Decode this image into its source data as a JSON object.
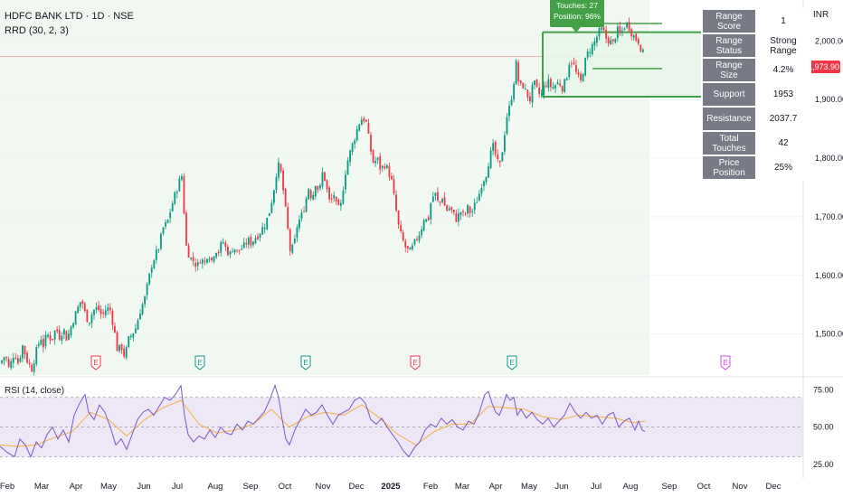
{
  "header": {
    "symbol_line": "HDFC BANK LTD · 1D · NSE",
    "indicator_line": "RRD (30, 2, 3)"
  },
  "currency": "INR",
  "last_price": "1,973.90",
  "callout": {
    "touches": "Touches: 27",
    "position": "Position: 96%"
  },
  "stats": [
    {
      "label": "Range Score",
      "value": "1"
    },
    {
      "label": "Range Status",
      "value": "Strong Range"
    },
    {
      "label": "Range Size",
      "value": "4.2%"
    },
    {
      "label": "Support",
      "value": "1953"
    },
    {
      "label": "Resistance",
      "value": "2037.7"
    },
    {
      "label": "Total Touches",
      "value": "42"
    },
    {
      "label": "Price Position",
      "value": "25%"
    }
  ],
  "rsi_title": "RSI (14, close)",
  "colors": {
    "up": "#089981",
    "down": "#f23645",
    "range": "#43a047",
    "rsi_line": "#7e57c2",
    "rsi_ma": "#f5b040",
    "rsi_band": "#ede7f6",
    "range_fill": "#e8f5e9",
    "price_line": "#f23645"
  },
  "chart_data": {
    "type": "candlestick",
    "price_axis": {
      "ticks": [
        1500,
        1600,
        1700,
        1800,
        1900,
        2000
      ],
      "tick_labels": [
        "1,500.00",
        "1,600.00",
        "1,700.00",
        "1,800.00",
        "1,900.00",
        "2,000.00"
      ],
      "ylim": [
        1430,
        2070
      ]
    },
    "rsi_axis": {
      "ticks": [
        25,
        50,
        75
      ],
      "tick_labels": [
        "25.00",
        "50.00",
        "75.00"
      ],
      "bands": [
        30,
        70
      ],
      "ylim": [
        20,
        82
      ]
    },
    "x_labels": [
      "Feb",
      "Mar",
      "Apr",
      "May",
      "Jun",
      "Jul",
      "Aug",
      "Sep",
      "Oct",
      "Nov",
      "Dec",
      "2025",
      "Feb",
      "Mar",
      "Apr",
      "May",
      "Jun",
      "Jul",
      "Aug",
      "Sep",
      "Oct",
      "Nov",
      "Dec"
    ],
    "price_path": [
      [
        0,
        1450
      ],
      [
        6,
        1465
      ],
      [
        10,
        1440
      ],
      [
        16,
        1470
      ],
      [
        20,
        1450
      ],
      [
        25,
        1480
      ],
      [
        30,
        1455
      ],
      [
        35,
        1440
      ],
      [
        40,
        1470
      ],
      [
        45,
        1495
      ],
      [
        48,
        1480
      ],
      [
        52,
        1500
      ],
      [
        57,
        1490
      ],
      [
        62,
        1510
      ],
      [
        66,
        1495
      ],
      [
        70,
        1510
      ],
      [
        74,
        1490
      ],
      [
        80,
        1520
      ],
      [
        85,
        1540
      ],
      [
        90,
        1560
      ],
      [
        94,
        1535
      ],
      [
        98,
        1520
      ],
      [
        103,
        1540
      ],
      [
        108,
        1545
      ],
      [
        113,
        1530
      ],
      [
        118,
        1545
      ],
      [
        122,
        1540
      ],
      [
        126,
        1510
      ],
      [
        130,
        1470
      ],
      [
        134,
        1480
      ],
      [
        138,
        1460
      ],
      [
        142,
        1490
      ],
      [
        146,
        1500
      ],
      [
        150,
        1510
      ],
      [
        155,
        1540
      ],
      [
        160,
        1560
      ],
      [
        164,
        1590
      ],
      [
        168,
        1620
      ],
      [
        172,
        1635
      ],
      [
        176,
        1650
      ],
      [
        180,
        1680
      ],
      [
        185,
        1690
      ],
      [
        190,
        1720
      ],
      [
        194,
        1740
      ],
      [
        198,
        1760
      ],
      [
        201,
        1770
      ],
      [
        203,
        1720
      ],
      [
        206,
        1650
      ],
      [
        210,
        1630
      ],
      [
        214,
        1625
      ],
      [
        218,
        1615
      ],
      [
        222,
        1630
      ],
      [
        226,
        1620
      ],
      [
        230,
        1640
      ],
      [
        234,
        1625
      ],
      [
        238,
        1645
      ],
      [
        242,
        1640
      ],
      [
        246,
        1660
      ],
      [
        250,
        1645
      ],
      [
        254,
        1635
      ],
      [
        258,
        1650
      ],
      [
        262,
        1640
      ],
      [
        266,
        1645
      ],
      [
        270,
        1650
      ],
      [
        274,
        1660
      ],
      [
        278,
        1655
      ],
      [
        282,
        1665
      ],
      [
        286,
        1670
      ],
      [
        290,
        1680
      ],
      [
        294,
        1690
      ],
      [
        298,
        1710
      ],
      [
        302,
        1740
      ],
      [
        306,
        1780
      ],
      [
        309,
        1790
      ],
      [
        312,
        1760
      ],
      [
        315,
        1720
      ],
      [
        318,
        1680
      ],
      [
        321,
        1640
      ],
      [
        325,
        1650
      ],
      [
        329,
        1690
      ],
      [
        333,
        1700
      ],
      [
        337,
        1720
      ],
      [
        341,
        1750
      ],
      [
        345,
        1730
      ],
      [
        349,
        1760
      ],
      [
        353,
        1740
      ],
      [
        357,
        1780
      ],
      [
        361,
        1750
      ],
      [
        365,
        1720
      ],
      [
        369,
        1740
      ],
      [
        373,
        1710
      ],
      [
        377,
        1720
      ],
      [
        381,
        1770
      ],
      [
        385,
        1800
      ],
      [
        389,
        1820
      ],
      [
        393,
        1840
      ],
      [
        397,
        1860
      ],
      [
        401,
        1870
      ],
      [
        405,
        1860
      ],
      [
        409,
        1820
      ],
      [
        413,
        1790
      ],
      [
        417,
        1800
      ],
      [
        421,
        1780
      ],
      [
        425,
        1790
      ],
      [
        429,
        1780
      ],
      [
        433,
        1760
      ],
      [
        437,
        1720
      ],
      [
        441,
        1680
      ],
      [
        445,
        1660
      ],
      [
        449,
        1645
      ],
      [
        453,
        1640
      ],
      [
        457,
        1650
      ],
      [
        461,
        1665
      ],
      [
        465,
        1675
      ],
      [
        469,
        1700
      ],
      [
        473,
        1690
      ],
      [
        477,
        1730
      ],
      [
        481,
        1740
      ],
      [
        485,
        1720
      ],
      [
        489,
        1735
      ],
      [
        493,
        1710
      ],
      [
        497,
        1715
      ],
      [
        501,
        1705
      ],
      [
        505,
        1695
      ],
      [
        509,
        1710
      ],
      [
        513,
        1700
      ],
      [
        517,
        1715
      ],
      [
        521,
        1705
      ],
      [
        525,
        1720
      ],
      [
        529,
        1735
      ],
      [
        533,
        1760
      ],
      [
        537,
        1770
      ],
      [
        541,
        1800
      ],
      [
        545,
        1820
      ],
      [
        549,
        1800
      ],
      [
        552,
        1780
      ],
      [
        556,
        1820
      ],
      [
        560,
        1870
      ],
      [
        564,
        1890
      ],
      [
        568,
        1930
      ],
      [
        571,
        1965
      ],
      [
        574,
        1920
      ],
      [
        578,
        1925
      ],
      [
        582,
        1910
      ],
      [
        586,
        1900
      ],
      [
        590,
        1930
      ],
      [
        594,
        1915
      ],
      [
        598,
        1905
      ],
      [
        602,
        1925
      ],
      [
        606,
        1930
      ],
      [
        610,
        1920
      ],
      [
        614,
        1925
      ],
      [
        618,
        1930
      ],
      [
        622,
        1920
      ],
      [
        626,
        1935
      ],
      [
        630,
        1970
      ],
      [
        634,
        1960
      ],
      [
        638,
        1940
      ],
      [
        642,
        1930
      ],
      [
        646,
        1960
      ],
      [
        650,
        1980
      ],
      [
        654,
        1990
      ],
      [
        658,
        2000
      ],
      [
        662,
        2015
      ],
      [
        666,
        2020
      ],
      [
        670,
        2005
      ],
      [
        674,
        2000
      ],
      [
        678,
        1995
      ],
      [
        682,
        2020
      ],
      [
        686,
        2010
      ],
      [
        690,
        2025
      ],
      [
        694,
        2030
      ],
      [
        698,
        2015
      ],
      [
        702,
        2005
      ],
      [
        706,
        2000
      ],
      [
        710,
        1980
      ],
      [
        713,
        1974
      ]
    ],
    "rsi_path": [
      [
        0,
        37
      ],
      [
        8,
        33
      ],
      [
        16,
        30
      ],
      [
        22,
        42
      ],
      [
        28,
        38
      ],
      [
        34,
        30
      ],
      [
        40,
        40
      ],
      [
        46,
        36
      ],
      [
        52,
        45
      ],
      [
        58,
        50
      ],
      [
        64,
        42
      ],
      [
        70,
        48
      ],
      [
        76,
        40
      ],
      [
        82,
        58
      ],
      [
        88,
        66
      ],
      [
        94,
        72
      ],
      [
        98,
        60
      ],
      [
        104,
        55
      ],
      [
        110,
        65
      ],
      [
        116,
        60
      ],
      [
        122,
        50
      ],
      [
        128,
        38
      ],
      [
        134,
        42
      ],
      [
        140,
        35
      ],
      [
        146,
        45
      ],
      [
        152,
        55
      ],
      [
        158,
        60
      ],
      [
        164,
        62
      ],
      [
        170,
        58
      ],
      [
        176,
        64
      ],
      [
        182,
        70
      ],
      [
        188,
        68
      ],
      [
        194,
        72
      ],
      [
        200,
        78
      ],
      [
        204,
        58
      ],
      [
        208,
        45
      ],
      [
        214,
        40
      ],
      [
        220,
        44
      ],
      [
        226,
        42
      ],
      [
        232,
        48
      ],
      [
        238,
        43
      ],
      [
        244,
        50
      ],
      [
        250,
        46
      ],
      [
        256,
        45
      ],
      [
        262,
        52
      ],
      [
        268,
        48
      ],
      [
        274,
        54
      ],
      [
        280,
        52
      ],
      [
        286,
        56
      ],
      [
        292,
        60
      ],
      [
        298,
        68
      ],
      [
        304,
        78
      ],
      [
        308,
        70
      ],
      [
        312,
        55
      ],
      [
        316,
        42
      ],
      [
        320,
        38
      ],
      [
        326,
        48
      ],
      [
        332,
        55
      ],
      [
        338,
        62
      ],
      [
        344,
        58
      ],
      [
        350,
        60
      ],
      [
        356,
        65
      ],
      [
        362,
        58
      ],
      [
        368,
        52
      ],
      [
        374,
        58
      ],
      [
        380,
        60
      ],
      [
        386,
        62
      ],
      [
        392,
        68
      ],
      [
        398,
        70
      ],
      [
        404,
        66
      ],
      [
        410,
        55
      ],
      [
        416,
        52
      ],
      [
        422,
        56
      ],
      [
        428,
        50
      ],
      [
        434,
        45
      ],
      [
        440,
        40
      ],
      [
        446,
        34
      ],
      [
        452,
        30
      ],
      [
        458,
        36
      ],
      [
        464,
        40
      ],
      [
        470,
        48
      ],
      [
        476,
        52
      ],
      [
        482,
        50
      ],
      [
        488,
        56
      ],
      [
        494,
        52
      ],
      [
        500,
        55
      ],
      [
        506,
        50
      ],
      [
        512,
        48
      ],
      [
        518,
        54
      ],
      [
        524,
        52
      ],
      [
        530,
        60
      ],
      [
        536,
        72
      ],
      [
        540,
        74
      ],
      [
        544,
        66
      ],
      [
        548,
        60
      ],
      [
        552,
        58
      ],
      [
        556,
        64
      ],
      [
        560,
        72
      ],
      [
        564,
        68
      ],
      [
        568,
        70
      ],
      [
        572,
        58
      ],
      [
        576,
        62
      ],
      [
        582,
        56
      ],
      [
        588,
        60
      ],
      [
        594,
        55
      ],
      [
        600,
        52
      ],
      [
        606,
        56
      ],
      [
        612,
        50
      ],
      [
        618,
        54
      ],
      [
        624,
        58
      ],
      [
        630,
        66
      ],
      [
        636,
        60
      ],
      [
        642,
        56
      ],
      [
        648,
        60
      ],
      [
        654,
        56
      ],
      [
        660,
        58
      ],
      [
        666,
        52
      ],
      [
        672,
        58
      ],
      [
        678,
        60
      ],
      [
        684,
        50
      ],
      [
        690,
        54
      ],
      [
        696,
        56
      ],
      [
        702,
        48
      ],
      [
        706,
        54
      ],
      [
        710,
        48
      ],
      [
        713,
        47
      ]
    ],
    "rsi_ma_path": [
      [
        0,
        38
      ],
      [
        20,
        37
      ],
      [
        40,
        38
      ],
      [
        60,
        43
      ],
      [
        80,
        47
      ],
      [
        100,
        60
      ],
      [
        120,
        55
      ],
      [
        140,
        44
      ],
      [
        160,
        55
      ],
      [
        180,
        63
      ],
      [
        200,
        68
      ],
      [
        220,
        52
      ],
      [
        240,
        46
      ],
      [
        260,
        48
      ],
      [
        280,
        52
      ],
      [
        300,
        62
      ],
      [
        320,
        50
      ],
      [
        340,
        57
      ],
      [
        360,
        60
      ],
      [
        380,
        58
      ],
      [
        400,
        65
      ],
      [
        420,
        56
      ],
      [
        440,
        45
      ],
      [
        460,
        38
      ],
      [
        480,
        47
      ],
      [
        500,
        52
      ],
      [
        520,
        52
      ],
      [
        540,
        64
      ],
      [
        560,
        63
      ],
      [
        580,
        62
      ],
      [
        600,
        57
      ],
      [
        620,
        55
      ],
      [
        640,
        58
      ],
      [
        660,
        57
      ],
      [
        680,
        56
      ],
      [
        700,
        53
      ],
      [
        713,
        54
      ]
    ],
    "range_box": {
      "x0": 600,
      "x1": 713,
      "support": 1905,
      "resistance": 2015
    },
    "inner_levels": [
      {
        "x0": 600,
        "x1": 713,
        "value": 2030
      },
      {
        "x0": 600,
        "x1": 713,
        "value": 1953
      }
    ],
    "last_price_value": 1973.9,
    "earnings_markers": [
      {
        "x": 106,
        "color": "#f23645"
      },
      {
        "x": 221,
        "color": "#089981"
      },
      {
        "x": 338,
        "color": "#089981"
      },
      {
        "x": 459,
        "color": "#f23645"
      },
      {
        "x": 566,
        "color": "#089981"
      },
      {
        "x": 802,
        "color": "#e040fb"
      }
    ]
  }
}
